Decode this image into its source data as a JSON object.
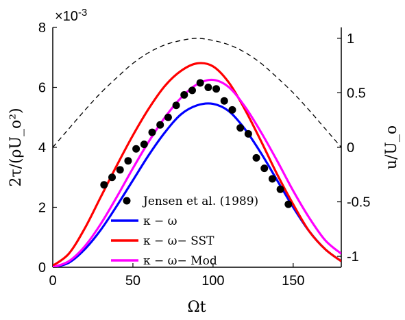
{
  "chart_data": {
    "type": "line",
    "title": "",
    "xlabel": "Ωt",
    "ylabel_left": "2τ/(ρU_o²)",
    "ylabel_right": "u/U_o",
    "left_exponent": "×10",
    "left_exponent_power": "-3",
    "xlim": [
      0,
      180
    ],
    "ylim_left": [
      0,
      8
    ],
    "ylim_right": [
      -1.1,
      1.1
    ],
    "x_ticks": [
      "0",
      "50",
      "100",
      "150"
    ],
    "x_tick_values": [
      0,
      50,
      100,
      150
    ],
    "y_left_ticks": [
      "0",
      "2",
      "4",
      "6",
      "8"
    ],
    "y_left_tick_values": [
      0,
      2,
      4,
      6,
      8
    ],
    "y_right_ticks": [
      "1",
      "0.5",
      "0",
      "-0.5",
      "-1"
    ],
    "y_right_tick_values": [
      1,
      0.5,
      0,
      -0.5,
      -1
    ],
    "grid": false,
    "legend_position": "lower-center",
    "legend": [
      {
        "label": "Jensen et al. (1989)",
        "marker": "circle",
        "color": "#000000"
      },
      {
        "label": "κ − ω",
        "marker": "line",
        "color": "#0000ff"
      },
      {
        "label": "κ − ω− SST",
        "marker": "line",
        "color": "#ff0000"
      },
      {
        "label": "κ − ω− Mod",
        "marker": "line",
        "color": "#ff00ff"
      }
    ],
    "velocity_right_axis": {
      "x": [
        0,
        10,
        20,
        30,
        40,
        50,
        60,
        70,
        80,
        90,
        100,
        110,
        120,
        130,
        140,
        150,
        160,
        170,
        180
      ],
      "y": [
        0,
        0.17,
        0.34,
        0.5,
        0.64,
        0.77,
        0.87,
        0.94,
        0.98,
        1.0,
        0.98,
        0.94,
        0.87,
        0.77,
        0.64,
        0.5,
        0.34,
        0.17,
        0
      ],
      "color": "#000000",
      "style": "dashed"
    },
    "series": [
      {
        "name": "Jensen et al. (1989)",
        "type": "scatter",
        "color": "#000000",
        "x": [
          32,
          37,
          42,
          47,
          52,
          57,
          62,
          67,
          72,
          77,
          82,
          87,
          92,
          97,
          102,
          107,
          112,
          117,
          122,
          127,
          132,
          137,
          142,
          147
        ],
        "y": [
          2.75,
          3.0,
          3.25,
          3.55,
          3.95,
          4.1,
          4.5,
          4.75,
          5.0,
          5.4,
          5.75,
          5.9,
          6.15,
          6.0,
          5.95,
          5.55,
          5.25,
          4.65,
          4.45,
          3.65,
          3.3,
          2.95,
          2.6,
          2.1
        ]
      },
      {
        "name": "κ − ω",
        "type": "line",
        "color": "#0000ff",
        "x": [
          0,
          10,
          20,
          30,
          40,
          50,
          60,
          70,
          80,
          90,
          100,
          110,
          120,
          130,
          140,
          150,
          160,
          170,
          180
        ],
        "y": [
          0,
          0.15,
          0.6,
          1.25,
          2.05,
          2.9,
          3.75,
          4.5,
          5.1,
          5.4,
          5.45,
          5.2,
          4.6,
          3.8,
          2.9,
          2.0,
          1.2,
          0.6,
          0.2
        ]
      },
      {
        "name": "κ − ω− SST",
        "type": "line",
        "color": "#ff0000",
        "x": [
          0,
          10,
          20,
          30,
          40,
          50,
          60,
          70,
          80,
          90,
          100,
          110,
          120,
          130,
          140,
          150,
          160,
          170,
          180
        ],
        "y": [
          0.05,
          0.45,
          1.3,
          2.35,
          3.4,
          4.4,
          5.3,
          6.05,
          6.55,
          6.8,
          6.7,
          6.15,
          5.25,
          4.2,
          3.1,
          2.1,
          1.2,
          0.6,
          0.2
        ]
      },
      {
        "name": "κ − ω− Mod",
        "type": "line",
        "color": "#ff00ff",
        "x": [
          0,
          10,
          20,
          30,
          40,
          50,
          60,
          70,
          80,
          90,
          100,
          110,
          120,
          130,
          140,
          150,
          160,
          170,
          180
        ],
        "y": [
          0,
          0.2,
          0.7,
          1.45,
          2.35,
          3.3,
          4.2,
          5.0,
          5.65,
          6.1,
          6.25,
          6.0,
          5.35,
          4.5,
          3.55,
          2.55,
          1.65,
          0.9,
          0.45
        ]
      }
    ]
  }
}
